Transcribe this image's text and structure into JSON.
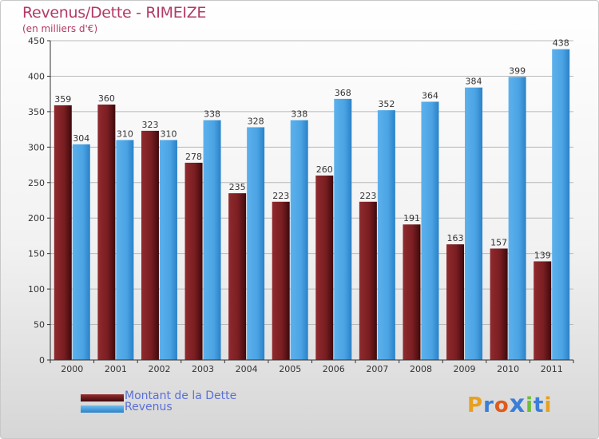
{
  "title": "Revenus/Dette - RIMEIZE",
  "subtitle": "(en milliers d'€)",
  "logo_text": "Proxiti",
  "colors": {
    "dette": "#7a1e22",
    "revenus": "#4ba3e3",
    "title": "#b23a66",
    "legend_text": "#5a6fd8"
  },
  "chart_data": {
    "type": "bar",
    "title": "Revenus/Dette - RIMEIZE",
    "subtitle": "(en milliers d'€)",
    "xlabel": "",
    "ylabel": "",
    "ylim": [
      0,
      450
    ],
    "yticks": [
      0,
      50,
      100,
      150,
      200,
      250,
      300,
      350,
      400,
      450
    ],
    "grid": true,
    "legend_position": "bottom-left",
    "categories": [
      "2000",
      "2001",
      "2002",
      "2003",
      "2004",
      "2005",
      "2006",
      "2007",
      "2008",
      "2009",
      "2010",
      "2011"
    ],
    "series": [
      {
        "name": "Montant de la Dette",
        "color": "#7a1e22",
        "values": [
          359,
          360,
          323,
          278,
          235,
          223,
          260,
          223,
          191,
          163,
          157,
          139
        ]
      },
      {
        "name": "Revenus",
        "color": "#4ba3e3",
        "values": [
          304,
          310,
          310,
          338,
          328,
          338,
          368,
          352,
          364,
          384,
          399,
          438
        ]
      }
    ]
  }
}
